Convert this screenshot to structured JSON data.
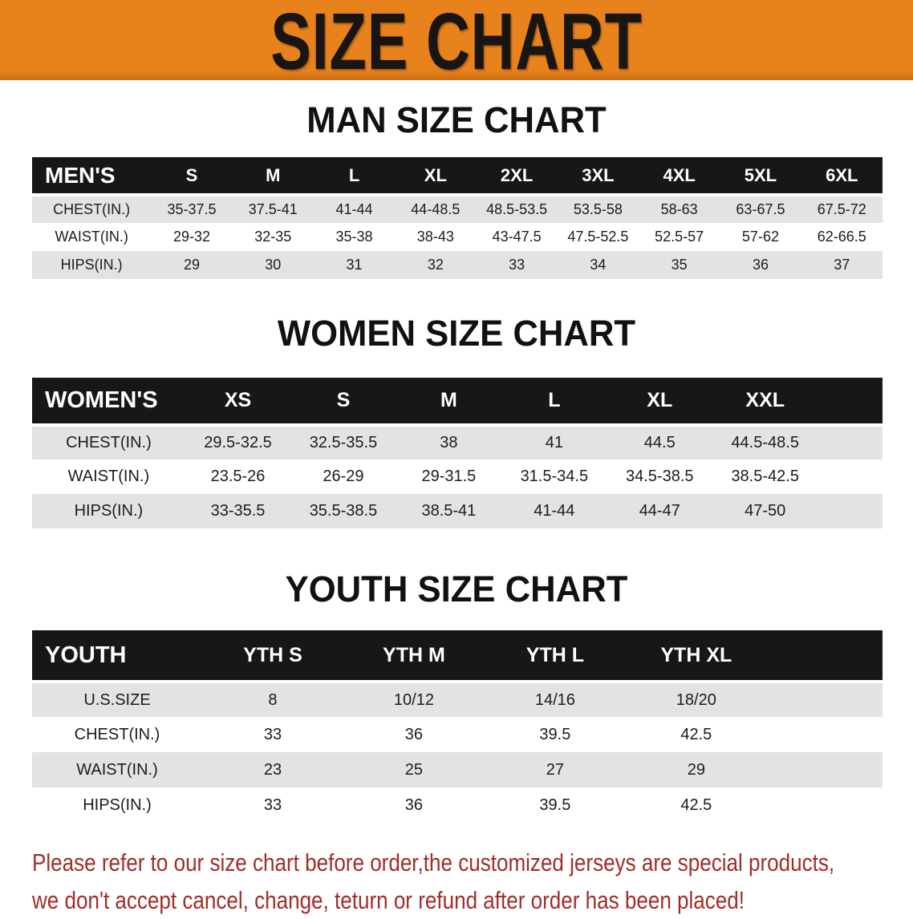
{
  "banner": {
    "title": "SIZE CHART"
  },
  "sections": [
    {
      "heading": "MAN SIZE CHART",
      "table": {
        "label": "MEN'S",
        "columns": [
          "S",
          "M",
          "L",
          "XL",
          "2XL",
          "3XL",
          "4XL",
          "5XL",
          "6XL"
        ],
        "rows": [
          {
            "label": "CHEST(IN.)",
            "values": [
              "35-37.5",
              "37.5-41",
              "41-44",
              "44-48.5",
              "48.5-53.5",
              "53.5-58",
              "58-63",
              "63-67.5",
              "67.5-72"
            ]
          },
          {
            "label": "WAIST(IN.)",
            "values": [
              "29-32",
              "32-35",
              "35-38",
              "38-43",
              "43-47.5",
              "47.5-52.5",
              "52.5-57",
              "57-62",
              "62-66.5"
            ]
          },
          {
            "label": "HIPS(IN.)",
            "values": [
              "29",
              "30",
              "31",
              "32",
              "33",
              "34",
              "35",
              "36",
              "37"
            ]
          }
        ]
      }
    },
    {
      "heading": "WOMEN SIZE CHART",
      "table": {
        "label": "WOMEN'S",
        "columns": [
          "XS",
          "S",
          "M",
          "L",
          "XL",
          "XXL"
        ],
        "rows": [
          {
            "label": "CHEST(IN.)",
            "values": [
              "29.5-32.5",
              "32.5-35.5",
              "38",
              "41",
              "44.5",
              "44.5-48.5"
            ]
          },
          {
            "label": "WAIST(IN.)",
            "values": [
              "23.5-26",
              "26-29",
              "29-31.5",
              "31.5-34.5",
              "34.5-38.5",
              "38.5-42.5"
            ]
          },
          {
            "label": "HIPS(IN.)",
            "values": [
              "33-35.5",
              "35.5-38.5",
              "38.5-41",
              "41-44",
              "44-47",
              "47-50"
            ]
          }
        ]
      }
    },
    {
      "heading": "YOUTH SIZE CHART",
      "table": {
        "label": "YOUTH",
        "columns": [
          "YTH S",
          "YTH M",
          "YTH L",
          "YTH XL"
        ],
        "rows": [
          {
            "label": "U.S.SIZE",
            "values": [
              "8",
              "10/12",
              "14/16",
              "18/20"
            ]
          },
          {
            "label": "CHEST(IN.)",
            "values": [
              "33",
              "36",
              "39.5",
              "42.5"
            ]
          },
          {
            "label": "WAIST(IN.)",
            "values": [
              "23",
              "25",
              "27",
              "29"
            ]
          },
          {
            "label": "HIPS(IN.)",
            "values": [
              "33",
              "36",
              "39.5",
              "42.5"
            ]
          }
        ]
      }
    }
  ],
  "disclaimer": {
    "line1": "Please refer to our size chart before order,the customized jerseys are special products,",
    "line2": "we don't accept cancel, change, teturn or refund after order has been placed!"
  },
  "colors": {
    "banner-bg": "#e8821d",
    "banner-bg-dark": "#c96d10",
    "banner-text": "#181512",
    "header-bar": "#171717",
    "header-text": "#ffffff",
    "stripe-gray": "#e3e3e3",
    "row-white": "#ffffff",
    "disclaimer-red": "#a02e28"
  }
}
